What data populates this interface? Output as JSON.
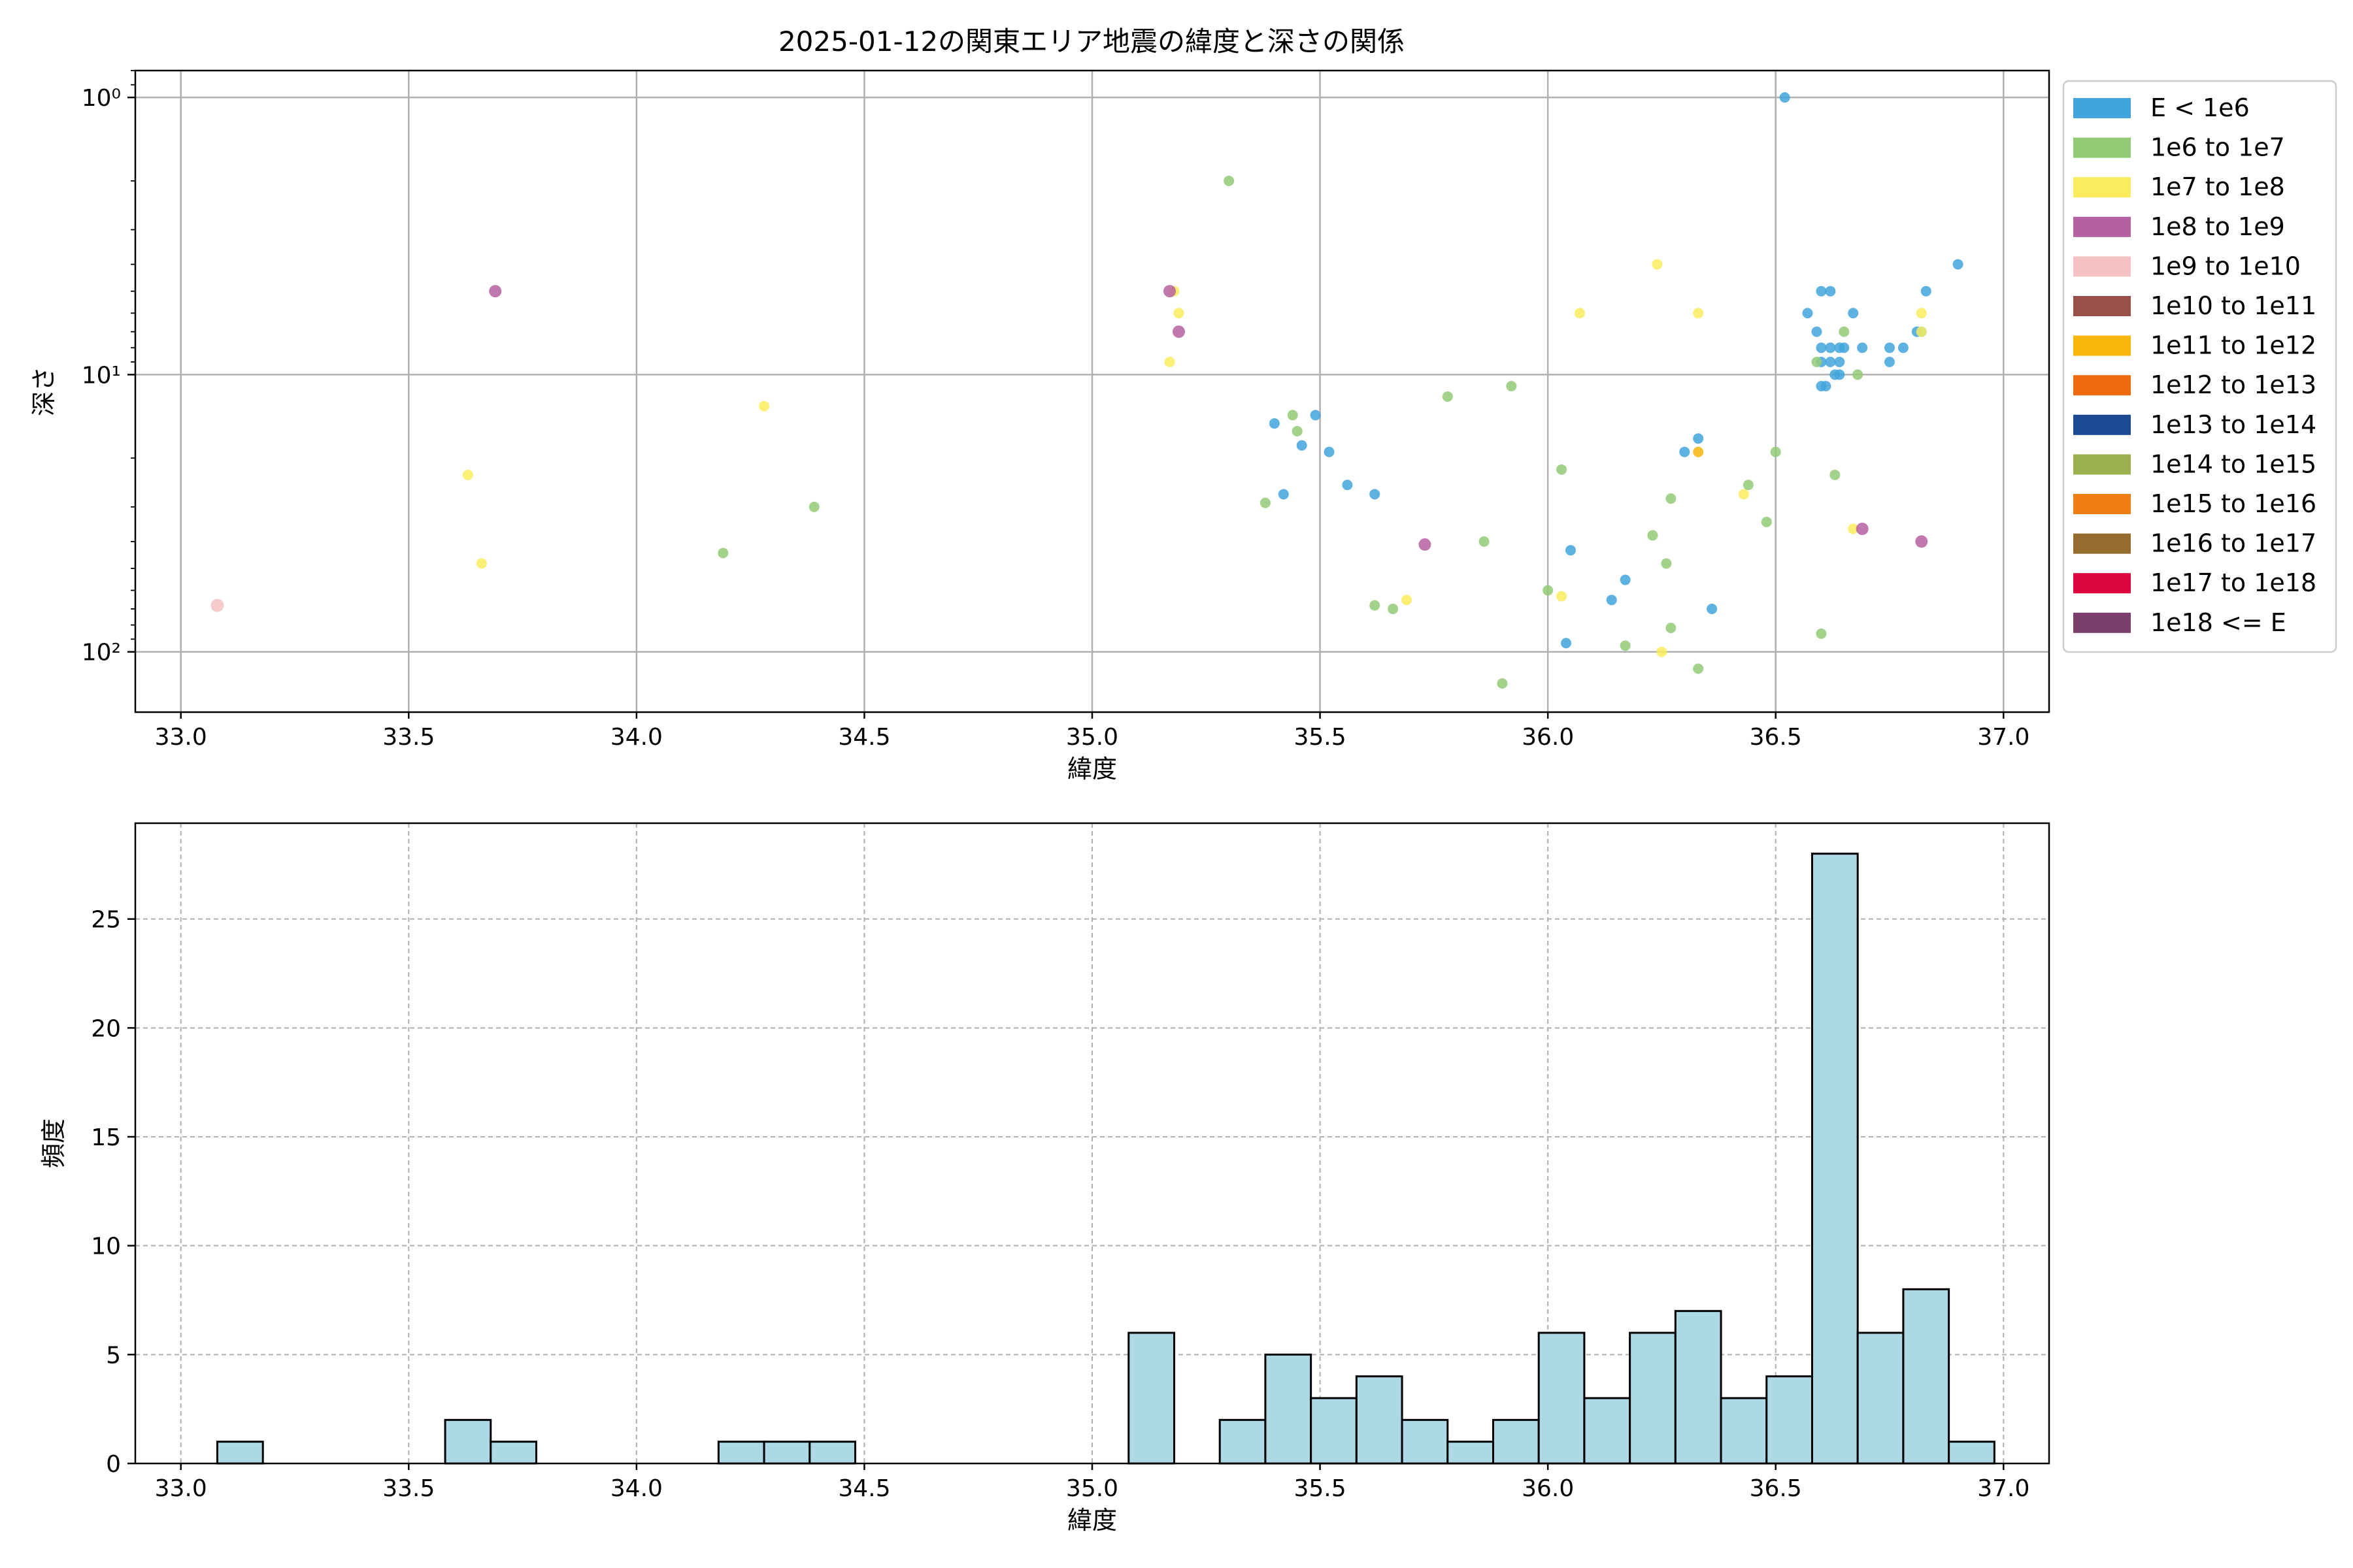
{
  "figure": {
    "title": "2025-01-12の関東エリア地震の緯度と深さの関係"
  },
  "legend": {
    "items": [
      {
        "label": "E < 1e6",
        "color": "#41a4dc"
      },
      {
        "label": "1e6 to 1e7",
        "color": "#93ca75"
      },
      {
        "label": "1e7 to 1e8",
        "color": "#fbec5d"
      },
      {
        "label": "1e8 to 1e9",
        "color": "#b560a0"
      },
      {
        "label": "1e9 to 1e10",
        "color": "#f4c2c2"
      },
      {
        "label": "1e10 to 1e11",
        "color": "#9a5049"
      },
      {
        "label": "1e11 to 1e12",
        "color": "#f8b50c"
      },
      {
        "label": "1e12 to 1e13",
        "color": "#ed6a0d"
      },
      {
        "label": "1e13 to 1e14",
        "color": "#1b4a92"
      },
      {
        "label": "1e14 to 1e15",
        "color": "#9cb050"
      },
      {
        "label": "1e15 to 1e16",
        "color": "#ef7c10"
      },
      {
        "label": "1e16 to 1e17",
        "color": "#946c2e"
      },
      {
        "label": "1e17 to 1e18",
        "color": "#dc053d"
      },
      {
        "label": "1e18 <= E",
        "color": "#7b3e6d"
      }
    ]
  },
  "chart_data": [
    {
      "type": "scatter",
      "xlabel": "緯度",
      "ylabel": "深さ",
      "xlim": [
        32.9,
        37.1
      ],
      "ylim": [
        165,
        0.8
      ],
      "yscale": "log",
      "y_inverted": true,
      "grid": true,
      "legend_placement": "outside-right",
      "xticks": [
        33.0,
        33.5,
        34.0,
        34.5,
        35.0,
        35.5,
        36.0,
        36.5,
        37.0
      ],
      "xtick_labels": [
        "33.0",
        "33.5",
        "34.0",
        "34.5",
        "35.0",
        "35.5",
        "36.0",
        "36.5",
        "37.0"
      ],
      "yticks": [
        1,
        10,
        100
      ],
      "ytick_labels": [
        "10⁰",
        "10¹",
        "10²"
      ],
      "series": [
        {
          "name": "E < 1e6",
          "points": [
            [
              36.52,
              1.0
            ],
            [
              36.57,
              6.0
            ],
            [
              36.59,
              7.0
            ],
            [
              36.6,
              5.0
            ],
            [
              36.62,
              5.0
            ],
            [
              36.6,
              8.0
            ],
            [
              36.62,
              8.0
            ],
            [
              36.64,
              8.0
            ],
            [
              36.65,
              8.0
            ],
            [
              36.6,
              9.0
            ],
            [
              36.62,
              9.0
            ],
            [
              36.64,
              9.0
            ],
            [
              36.63,
              10.0
            ],
            [
              36.64,
              10.0
            ],
            [
              36.6,
              11.0
            ],
            [
              36.61,
              11.0
            ],
            [
              36.67,
              6.0
            ],
            [
              36.69,
              8.0
            ],
            [
              36.75,
              8.0
            ],
            [
              36.78,
              8.0
            ],
            [
              36.81,
              7.0
            ],
            [
              36.83,
              5.0
            ],
            [
              36.9,
              4.0
            ],
            [
              36.75,
              9.0
            ],
            [
              36.82,
              7.0
            ],
            [
              35.49,
              14.0
            ],
            [
              35.4,
              15.0
            ],
            [
              35.46,
              18.0
            ],
            [
              35.52,
              19.0
            ],
            [
              35.56,
              25.0
            ],
            [
              35.62,
              27.0
            ],
            [
              35.42,
              27.0
            ],
            [
              36.33,
              17.0
            ],
            [
              36.3,
              19.0
            ],
            [
              36.05,
              43.0
            ],
            [
              36.17,
              55.0
            ],
            [
              36.14,
              65.0
            ],
            [
              36.36,
              70.0
            ],
            [
              36.04,
              93.0
            ]
          ]
        },
        {
          "name": "1e6 to 1e7",
          "points": [
            [
              35.3,
              2.0
            ],
            [
              35.78,
              12.0
            ],
            [
              35.92,
              11.0
            ],
            [
              35.44,
              14.0
            ],
            [
              35.45,
              16.0
            ],
            [
              35.38,
              29.0
            ],
            [
              36.5,
              19.0
            ],
            [
              36.44,
              25.0
            ],
            [
              36.03,
              22.0
            ],
            [
              36.63,
              23.0
            ],
            [
              36.27,
              28.0
            ],
            [
              36.48,
              34.0
            ],
            [
              36.23,
              38.0
            ],
            [
              35.86,
              40.0
            ],
            [
              36.26,
              48.0
            ],
            [
              36.0,
              60.0
            ],
            [
              35.62,
              68.0
            ],
            [
              35.66,
              70.0
            ],
            [
              36.27,
              82.0
            ],
            [
              36.6,
              86.0
            ],
            [
              36.17,
              95.0
            ],
            [
              36.33,
              115.0
            ],
            [
              35.9,
              130.0
            ],
            [
              34.39,
              30.0
            ],
            [
              34.19,
              44.0
            ],
            [
              36.65,
              7.0
            ],
            [
              36.68,
              10.0
            ],
            [
              36.59,
              9.0
            ]
          ]
        },
        {
          "name": "1e7 to 1e8",
          "points": [
            [
              36.24,
              4.0
            ],
            [
              35.18,
              5.0
            ],
            [
              35.19,
              6.0
            ],
            [
              36.07,
              6.0
            ],
            [
              36.33,
              6.0
            ],
            [
              36.82,
              6.0
            ],
            [
              35.17,
              9.0
            ],
            [
              34.28,
              13.0
            ],
            [
              33.63,
              23.0
            ],
            [
              33.66,
              48.0
            ],
            [
              36.43,
              27.0
            ],
            [
              36.67,
              36.0
            ],
            [
              36.03,
              63.0
            ],
            [
              35.69,
              65.0
            ],
            [
              36.25,
              100.0
            ],
            [
              36.82,
              7.0
            ]
          ]
        },
        {
          "name": "1e8 to 1e9",
          "points": [
            [
              33.69,
              5.0
            ],
            [
              35.17,
              5.0
            ],
            [
              35.19,
              7.0
            ],
            [
              35.73,
              41.0
            ],
            [
              36.69,
              36.0
            ],
            [
              36.82,
              40.0
            ]
          ]
        },
        {
          "name": "1e9 to 1e10",
          "points": [
            [
              33.08,
              68.0
            ]
          ]
        },
        {
          "name": "1e11 to 1e12",
          "points": [
            [
              36.33,
              19.0
            ]
          ]
        }
      ]
    },
    {
      "type": "bar",
      "subtype": "histogram",
      "xlabel": "緯度",
      "ylabel": "頻度",
      "xlim": [
        32.9,
        37.1
      ],
      "ylim": [
        0,
        29.4
      ],
      "grid": true,
      "grid_style": "dashed",
      "bin_edges": [
        33.08,
        33.18,
        33.28,
        33.38,
        33.48,
        33.58,
        33.68,
        33.78,
        33.88,
        33.98,
        34.08,
        34.18,
        34.28,
        34.38,
        34.48,
        34.58,
        34.68,
        34.78,
        34.88,
        34.98,
        35.08,
        35.18,
        35.28,
        35.38,
        35.48,
        35.58,
        35.68,
        35.78,
        35.88,
        35.98,
        36.08,
        36.18,
        36.28,
        36.38,
        36.48,
        36.58,
        36.68,
        36.78,
        36.88,
        36.98
      ],
      "values": [
        1,
        0,
        0,
        0,
        0,
        2,
        1,
        0,
        0,
        0,
        0,
        1,
        1,
        1,
        0,
        0,
        0,
        0,
        0,
        0,
        6,
        0,
        2,
        5,
        3,
        4,
        2,
        1,
        2,
        6,
        3,
        6,
        7,
        3,
        4,
        28,
        6,
        8,
        1
      ],
      "bar_color": "#add8e6",
      "edge_color": "#000000",
      "xticks": [
        33.0,
        33.5,
        34.0,
        34.5,
        35.0,
        35.5,
        36.0,
        36.5,
        37.0
      ],
      "xtick_labels": [
        "33.0",
        "33.5",
        "34.0",
        "34.5",
        "35.0",
        "35.5",
        "36.0",
        "36.5",
        "37.0"
      ],
      "yticks": [
        0,
        5,
        10,
        15,
        20,
        25
      ],
      "ytick_labels": [
        "0",
        "5",
        "10",
        "15",
        "20",
        "25"
      ]
    }
  ]
}
